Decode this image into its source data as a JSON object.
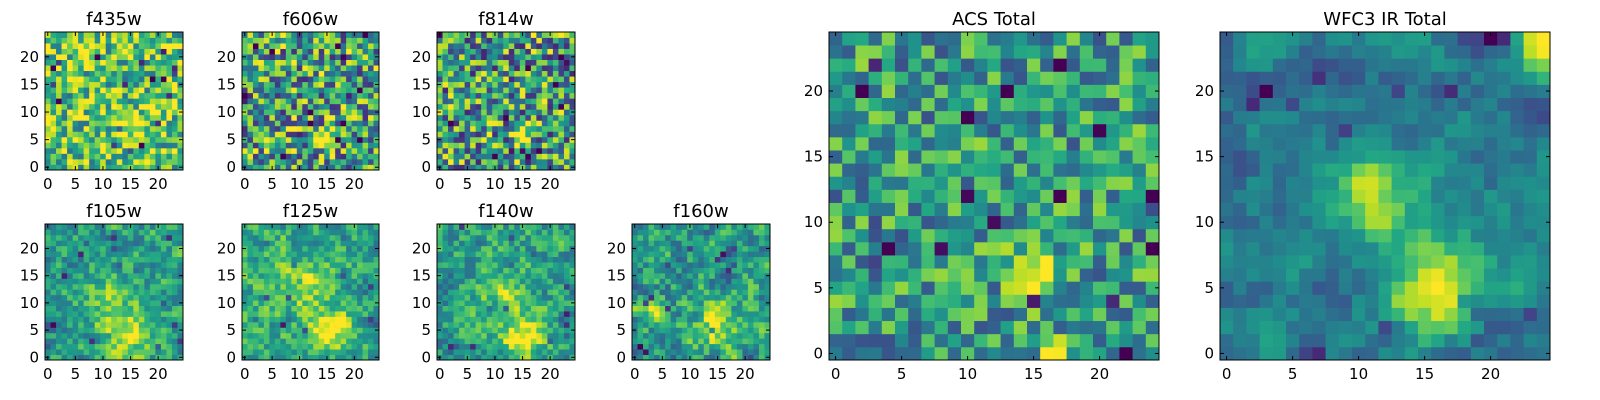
{
  "figure": {
    "description_free": true
  },
  "chart_data": [
    {
      "type": "heatmap",
      "title": "f435w",
      "size": "small",
      "cols": 25,
      "rows": 25,
      "xticks": [
        0,
        5,
        10,
        15,
        20
      ],
      "yticks": [
        0,
        5,
        10,
        15,
        20
      ],
      "xlim": [
        0,
        24
      ],
      "ylim": [
        0,
        24
      ],
      "colormap": "viridis",
      "seed": 11,
      "blobs": [
        {
          "cx": 15,
          "cy": 7,
          "amp": 0.25,
          "sigma": 2.0
        }
      ],
      "smooth": 0,
      "bias": 0.72,
      "noise": 0.35
    },
    {
      "type": "heatmap",
      "title": "f606w",
      "size": "small",
      "cols": 25,
      "rows": 25,
      "xticks": [
        0,
        5,
        10,
        15,
        20
      ],
      "yticks": [
        0,
        5,
        10,
        15,
        20
      ],
      "xlim": [
        0,
        24
      ],
      "ylim": [
        0,
        24
      ],
      "colormap": "viridis",
      "seed": 23,
      "blobs": [
        {
          "cx": 15,
          "cy": 6,
          "amp": 0.55,
          "sigma": 1.2
        }
      ],
      "smooth": 0,
      "bias": 0.58,
      "noise": 0.45
    },
    {
      "type": "heatmap",
      "title": "f814w",
      "size": "small",
      "cols": 25,
      "rows": 25,
      "xticks": [
        0,
        5,
        10,
        15,
        20
      ],
      "yticks": [
        0,
        5,
        10,
        15,
        20
      ],
      "xlim": [
        0,
        24
      ],
      "ylim": [
        0,
        24
      ],
      "colormap": "viridis",
      "seed": 37,
      "blobs": [
        {
          "cx": 15,
          "cy": 6,
          "amp": 0.55,
          "sigma": 1.3
        }
      ],
      "smooth": 0,
      "bias": 0.55,
      "noise": 0.45
    },
    {
      "type": "heatmap",
      "title": "f105w",
      "size": "small",
      "cols": 25,
      "rows": 25,
      "xticks": [
        0,
        5,
        10,
        15,
        20
      ],
      "yticks": [
        0,
        5,
        10,
        15,
        20
      ],
      "xlim": [
        0,
        24
      ],
      "ylim": [
        0,
        24
      ],
      "colormap": "viridis",
      "seed": 41,
      "blobs": [
        {
          "cx": 14,
          "cy": 5,
          "amp": 0.4,
          "sigma": 3.5
        },
        {
          "cx": 11,
          "cy": 13,
          "amp": 0.2,
          "sigma": 3
        }
      ],
      "smooth": 1,
      "bias": 0.55,
      "noise": 0.35
    },
    {
      "type": "heatmap",
      "title": "f125w",
      "size": "small",
      "cols": 25,
      "rows": 25,
      "xticks": [
        0,
        5,
        10,
        15,
        20
      ],
      "yticks": [
        0,
        5,
        10,
        15,
        20
      ],
      "xlim": [
        0,
        24
      ],
      "ylim": [
        0,
        24
      ],
      "colormap": "viridis",
      "seed": 53,
      "blobs": [
        {
          "cx": 15,
          "cy": 5,
          "amp": 0.35,
          "sigma": 3.0
        },
        {
          "cx": 11,
          "cy": 14,
          "amp": 0.25,
          "sigma": 3
        }
      ],
      "smooth": 1,
      "bias": 0.62,
      "noise": 0.35
    },
    {
      "type": "heatmap",
      "title": "f140w",
      "size": "small",
      "cols": 25,
      "rows": 25,
      "xticks": [
        0,
        5,
        10,
        15,
        20
      ],
      "yticks": [
        0,
        5,
        10,
        15,
        20
      ],
      "xlim": [
        0,
        24
      ],
      "ylim": [
        0,
        24
      ],
      "colormap": "viridis",
      "seed": 67,
      "blobs": [
        {
          "cx": 15,
          "cy": 4,
          "amp": 0.4,
          "sigma": 3.0
        },
        {
          "cx": 11,
          "cy": 13,
          "amp": 0.25,
          "sigma": 3
        }
      ],
      "smooth": 1,
      "bias": 0.58,
      "noise": 0.35
    },
    {
      "type": "heatmap",
      "title": "f160w",
      "size": "small",
      "cols": 25,
      "rows": 25,
      "xticks": [
        0,
        5,
        10,
        15,
        20
      ],
      "yticks": [
        0,
        5,
        10,
        15,
        20
      ],
      "xlim": [
        0,
        24
      ],
      "ylim": [
        0,
        24
      ],
      "colormap": "viridis",
      "seed": 79,
      "blobs": [
        {
          "cx": 15,
          "cy": 6,
          "amp": 0.4,
          "sigma": 3.0
        },
        {
          "cx": 3,
          "cy": 8,
          "amp": 0.3,
          "sigma": 2
        }
      ],
      "smooth": 1,
      "bias": 0.55,
      "noise": 0.4
    },
    {
      "type": "heatmap",
      "title": "ACS Total",
      "size": "large",
      "cols": 25,
      "rows": 25,
      "xticks": [
        0,
        5,
        10,
        15,
        20
      ],
      "yticks": [
        0,
        5,
        10,
        15,
        20
      ],
      "xlim": [
        0,
        24
      ],
      "ylim": [
        0,
        24
      ],
      "colormap": "viridis",
      "seed": 97,
      "blobs": [
        {
          "cx": 15,
          "cy": 6,
          "amp": 0.55,
          "sigma": 1.2
        },
        {
          "cx": 16,
          "cy": 0,
          "amp": 0.5,
          "sigma": 0.9
        }
      ],
      "smooth": 0,
      "bias": 0.55,
      "noise": 0.3
    },
    {
      "type": "heatmap",
      "title": "WFC3 IR Total",
      "size": "large",
      "cols": 25,
      "rows": 25,
      "xticks": [
        0,
        5,
        10,
        15,
        20
      ],
      "yticks": [
        0,
        5,
        10,
        15,
        20
      ],
      "xlim": [
        0,
        24
      ],
      "ylim": [
        0,
        24
      ],
      "colormap": "viridis",
      "seed": 113,
      "blobs": [
        {
          "cx": 16,
          "cy": 5,
          "amp": 0.55,
          "sigma": 2.8
        },
        {
          "cx": 11,
          "cy": 12,
          "amp": 0.45,
          "sigma": 2.2
        },
        {
          "cx": 24,
          "cy": 24,
          "amp": 0.5,
          "sigma": 1.5
        }
      ],
      "smooth": 2,
      "bias": 0.42,
      "noise": 0.35
    }
  ]
}
